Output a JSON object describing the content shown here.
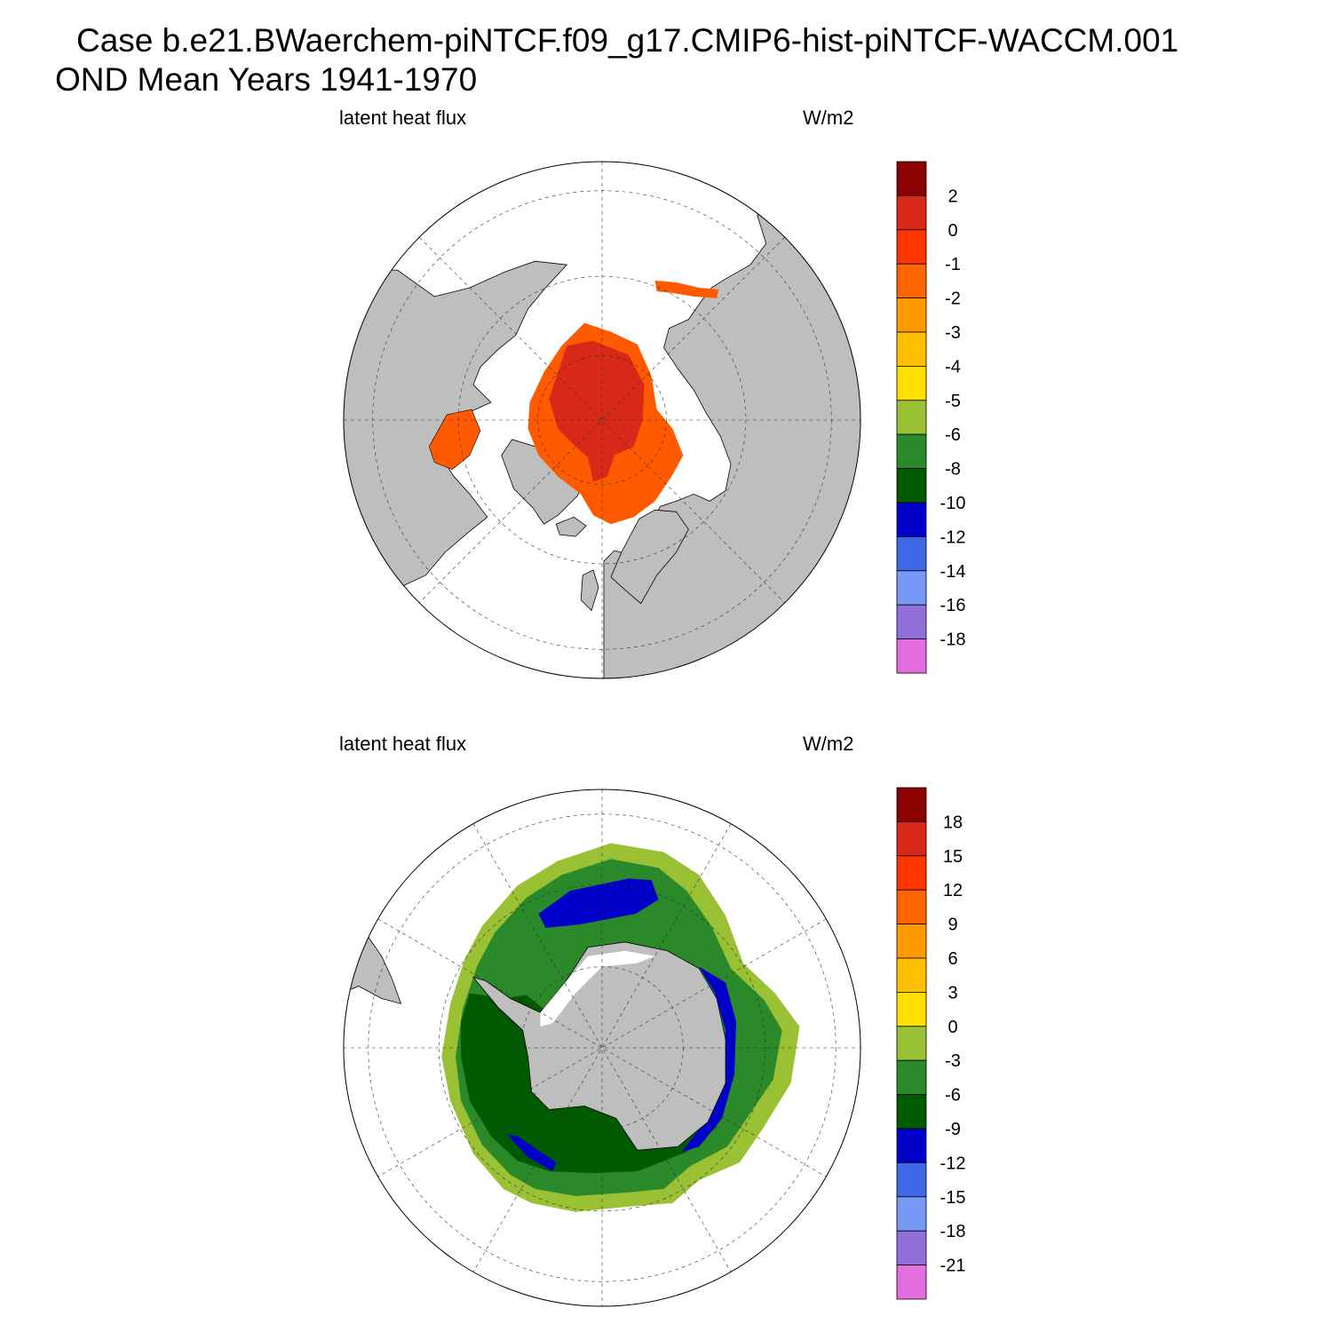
{
  "header": {
    "case_line": "Case b.e21.BWaerchem-piNTCF.f09_g17.CMIP6-hist-piNTCF-WACCM.001",
    "period_line": "OND Mean   Years 1941-1970"
  },
  "panels": [
    {
      "hemisphere": "north",
      "left_label": "latent heat flux",
      "right_label": "W/m2",
      "colorbar": {
        "colors": [
          "#8b0000",
          "#d8281a",
          "#ff3500",
          "#ff6600",
          "#ff9900",
          "#ffc000",
          "#ffe000",
          "#9ac134",
          "#2a8a2a",
          "#005a00",
          "#0000c8",
          "#3e68e6",
          "#7899f5",
          "#9270db",
          "#e36ede"
        ],
        "labels": [
          "2",
          "0",
          "-1",
          "-2",
          "-3",
          "-4",
          "-5",
          "-6",
          "-8",
          "-10",
          "-12",
          "-14",
          "-16",
          "-18"
        ]
      }
    },
    {
      "hemisphere": "south",
      "left_label": "latent heat flux",
      "right_label": "W/m2",
      "colorbar": {
        "colors": [
          "#8b0000",
          "#d8281a",
          "#ff3500",
          "#ff6600",
          "#ff9900",
          "#ffc000",
          "#ffe000",
          "#9ac134",
          "#2a8a2a",
          "#005a00",
          "#0000c8",
          "#3e68e6",
          "#7899f5",
          "#9270db",
          "#e36ede"
        ],
        "labels": [
          "18",
          "15",
          "12",
          "9",
          "6",
          "3",
          "0",
          "-3",
          "-6",
          "-9",
          "-12",
          "-15",
          "-18",
          "-21"
        ]
      }
    }
  ]
}
